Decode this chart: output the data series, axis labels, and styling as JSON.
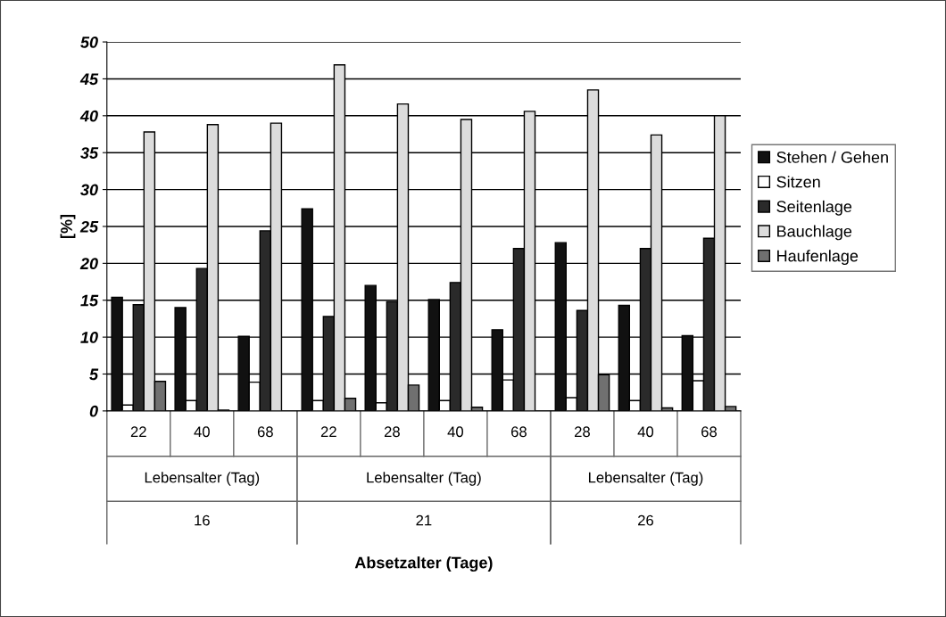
{
  "chart_data": {
    "type": "bar",
    "ylabel": "[%]",
    "categories": [
      "22",
      "40",
      "68",
      "22",
      "28",
      "40",
      "68",
      "28",
      "40",
      "68"
    ],
    "series": [
      {
        "name": "Stehen / Gehen",
        "color": "#111111",
        "values": [
          15.4,
          14.0,
          10.1,
          27.4,
          17.0,
          15.1,
          11.0,
          22.8,
          14.3,
          10.2
        ]
      },
      {
        "name": "Sitzen",
        "color": "#ffffff",
        "values": [
          0.8,
          1.4,
          3.9,
          1.4,
          1.1,
          1.4,
          4.2,
          1.8,
          1.4,
          4.1
        ]
      },
      {
        "name": "Seitenlage",
        "color": "#2a2a2a",
        "values": [
          14.4,
          19.3,
          24.4,
          12.8,
          14.8,
          17.4,
          22.0,
          13.6,
          22.0,
          23.4
        ]
      },
      {
        "name": "Bauchlage",
        "color": "#dcdcdc",
        "values": [
          37.8,
          38.8,
          39.0,
          46.9,
          41.6,
          39.5,
          40.6,
          43.5,
          37.4,
          40.0
        ]
      },
      {
        "name": "Haufenlage",
        "color": "#707070",
        "values": [
          4.0,
          0.1,
          null,
          1.7,
          3.5,
          0.5,
          null,
          4.9,
          0.4,
          0.6
        ]
      }
    ],
    "ylim": [
      0,
      50
    ],
    "yticks": [
      0,
      5,
      10,
      15,
      20,
      25,
      30,
      35,
      40,
      45,
      50
    ],
    "grid": "y",
    "legend": "right",
    "annotations": [
      "Lebensalter (Tag)",
      "16",
      "Lebensalter (Tag)",
      "21",
      "Lebensalter (Tag)",
      "26",
      "Absetzalter (Tage)"
    ]
  }
}
